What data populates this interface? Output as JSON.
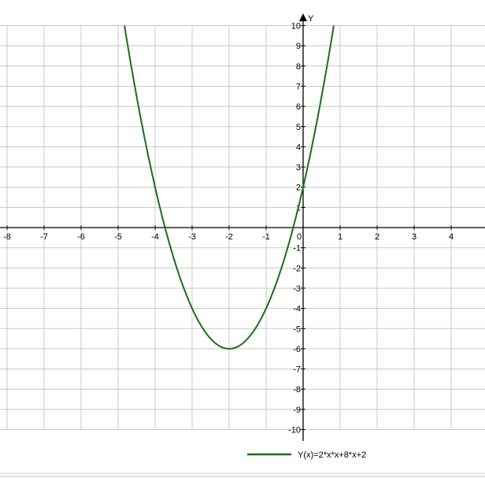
{
  "chart_data": {
    "type": "line",
    "title": "",
    "ylabel": "Y",
    "xlabel": "",
    "xlim": [
      -8.2,
      4.9
    ],
    "ylim": [
      -10,
      10
    ],
    "grid": true,
    "x_ticks": [
      -8,
      -7,
      -6,
      -5,
      -4,
      -3,
      -2,
      -1,
      0,
      1,
      2,
      3,
      4
    ],
    "y_ticks": [
      10,
      9,
      8,
      7,
      6,
      5,
      4,
      3,
      2,
      1,
      -1,
      -2,
      -3,
      -4,
      -5,
      -6,
      -7,
      -8,
      -9,
      -10
    ],
    "legend_placement": "bottom",
    "series": [
      {
        "name": "Y(x)=2*x*x+8*x+2",
        "function": "2*x*x+8*x+2",
        "color": "#1a6e1a",
        "x": [
          -4.83,
          -4.5,
          -4,
          -3.5,
          -3,
          -2.5,
          -2,
          -1.5,
          -1,
          -0.5,
          0,
          0.5,
          0.83
        ],
        "y": [
          10,
          6.5,
          2,
          -1.5,
          -4,
          -5.5,
          -6,
          -5.5,
          -4,
          -1.5,
          2,
          6.5,
          10
        ]
      }
    ]
  },
  "colors": {
    "grid": "#c8c8c8",
    "axis": "#000000",
    "curve": "#1a6e1a"
  }
}
